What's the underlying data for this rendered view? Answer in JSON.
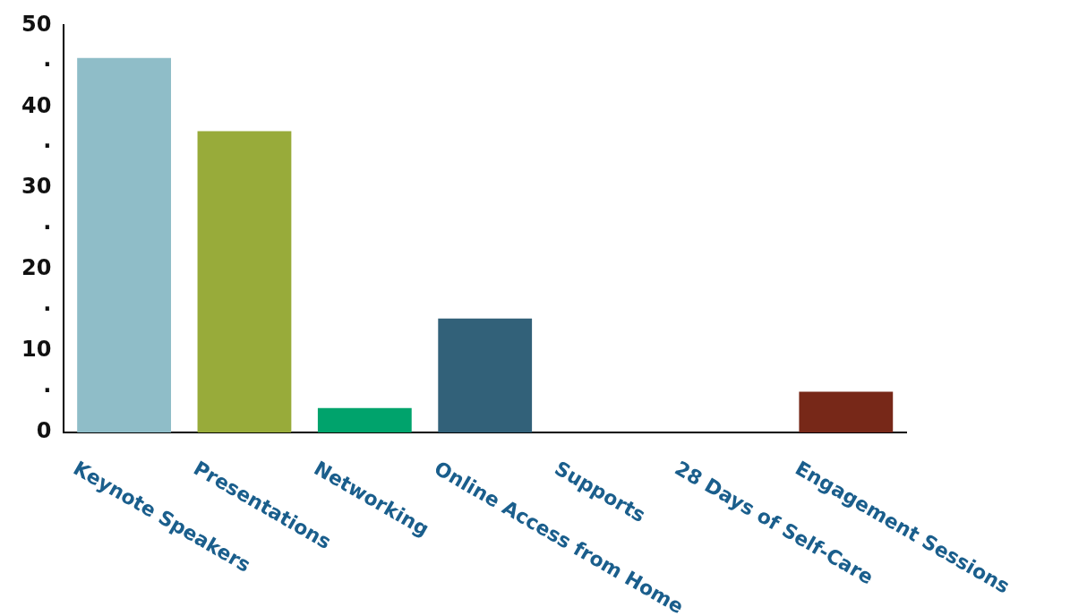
{
  "chart_data": {
    "type": "bar",
    "categories": [
      "Keynote Speakers",
      "Presentations",
      "Networking",
      "Online Access from Home",
      "Supports",
      "28 Days of Self-Care",
      "Engagement Sessions"
    ],
    "values": [
      46,
      37,
      3,
      14,
      0,
      0,
      5
    ],
    "colors": [
      "#8fbdc8",
      "#98ab3a",
      "#00a36c",
      "#326179",
      "#8fbdc8",
      "#8fbdc8",
      "#772818"
    ],
    "ylim": [
      0,
      50
    ],
    "yticks": [
      0,
      {
        "value": 5,
        "label": "·"
      },
      10,
      {
        "value": 15,
        "label": "·"
      },
      20,
      {
        "value": 25,
        "label": "·"
      },
      30,
      {
        "value": 35,
        "label": "·"
      },
      40,
      {
        "value": 45,
        "label": "·"
      },
      50
    ],
    "grid": false,
    "legend": false
  }
}
